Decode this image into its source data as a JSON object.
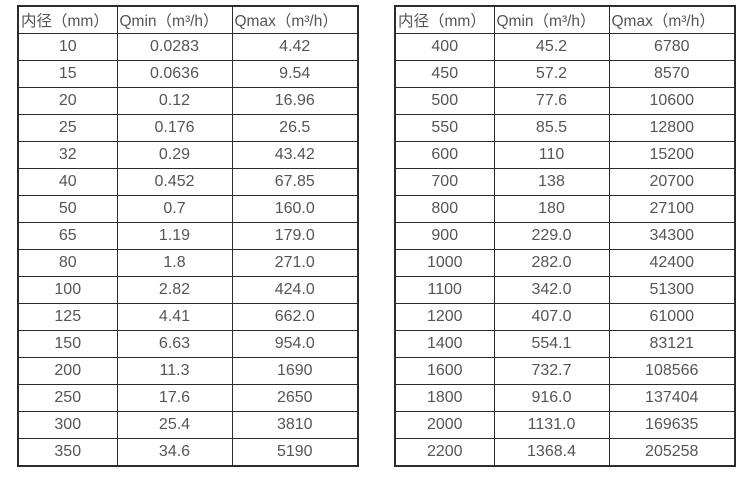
{
  "page": {
    "background": "#ffffff",
    "border_color": "#2b2b2b",
    "text_color": "#555555"
  },
  "tables": [
    {
      "name": "flow-spec-table-small-diameters",
      "headers": [
        "内径（mm）",
        "Qmin（m³/h）",
        "Qmax（m³/h）"
      ],
      "rows": [
        [
          "10",
          "0.0283",
          "4.42"
        ],
        [
          "15",
          "0.0636",
          "9.54"
        ],
        [
          "20",
          "0.12",
          "16.96"
        ],
        [
          "25",
          "0.176",
          "26.5"
        ],
        [
          "32",
          "0.29",
          "43.42"
        ],
        [
          "40",
          "0.452",
          "67.85"
        ],
        [
          "50",
          "0.7",
          "160.0"
        ],
        [
          "65",
          "1.19",
          "179.0"
        ],
        [
          "80",
          "1.8",
          "271.0"
        ],
        [
          "100",
          "2.82",
          "424.0"
        ],
        [
          "125",
          "4.41",
          "662.0"
        ],
        [
          "150",
          "6.63",
          "954.0"
        ],
        [
          "200",
          "11.3",
          "1690"
        ],
        [
          "250",
          "17.6",
          "2650"
        ],
        [
          "300",
          "25.4",
          "3810"
        ],
        [
          "350",
          "34.6",
          "5190"
        ]
      ]
    },
    {
      "name": "flow-spec-table-large-diameters",
      "headers": [
        "内径（mm）",
        "Qmin（m³/h）",
        "Qmax（m³/h）"
      ],
      "rows": [
        [
          "400",
          "45.2",
          "6780"
        ],
        [
          "450",
          "57.2",
          "8570"
        ],
        [
          "500",
          "77.6",
          "10600"
        ],
        [
          "550",
          "85.5",
          "12800"
        ],
        [
          "600",
          "110",
          "15200"
        ],
        [
          "700",
          "138",
          "20700"
        ],
        [
          "800",
          "180",
          "27100"
        ],
        [
          "900",
          "229.0",
          "34300"
        ],
        [
          "1000",
          "282.0",
          "42400"
        ],
        [
          "1100",
          "342.0",
          "51300"
        ],
        [
          "1200",
          "407.0",
          "61000"
        ],
        [
          "1400",
          "554.1",
          "83121"
        ],
        [
          "1600",
          "732.7",
          "108566"
        ],
        [
          "1800",
          "916.0",
          "137404"
        ],
        [
          "2000",
          "1131.0",
          "169635"
        ],
        [
          "2200",
          "1368.4",
          "205258"
        ]
      ]
    }
  ]
}
